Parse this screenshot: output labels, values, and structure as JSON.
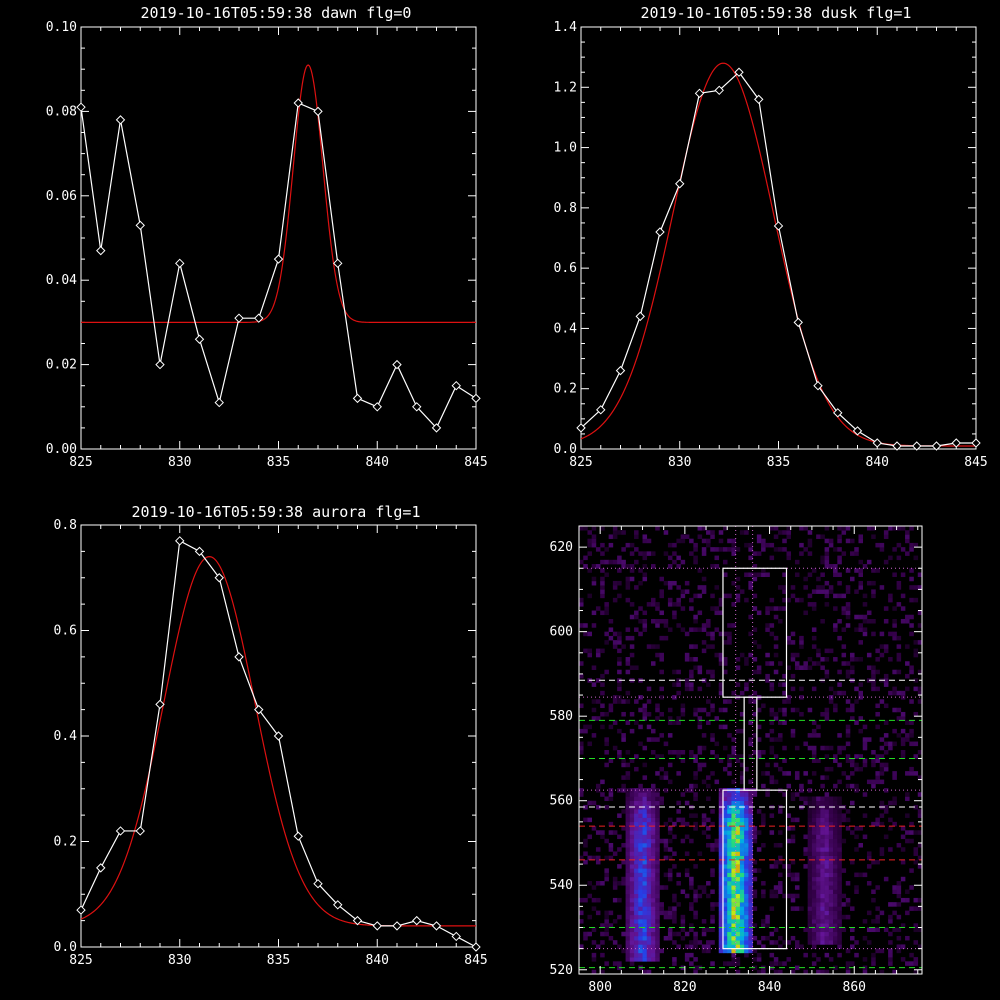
{
  "colors": {
    "background": "#000000",
    "axes": "#ffffff",
    "data": "#ffffff",
    "fit": "#dd1111",
    "guide_white": "#ffffff",
    "guide_green": "#22dd22",
    "guide_red": "#ee2222",
    "guide_dotted": "#cc66cc"
  },
  "chart_data": [
    {
      "id": "dawn",
      "type": "line",
      "title": "2019-10-16T05:59:38 dawn flg=0",
      "xlabel": "",
      "ylabel": "",
      "xlim": [
        825,
        845
      ],
      "ylim": [
        0,
        0.1
      ],
      "xticks": [
        825,
        830,
        835,
        840,
        845
      ],
      "yticks": [
        "0.00",
        "0.02",
        "0.04",
        "0.06",
        "0.08",
        "0.10"
      ],
      "series": [
        {
          "role": "data",
          "marker": "diamond",
          "x": [
            825,
            826,
            827,
            828,
            829,
            830,
            831,
            832,
            833,
            834,
            835,
            836,
            837,
            838,
            839,
            840,
            841,
            842,
            843,
            844,
            845
          ],
          "y": [
            0.081,
            0.047,
            0.078,
            0.053,
            0.02,
            0.044,
            0.026,
            0.011,
            0.031,
            0.031,
            0.045,
            0.082,
            0.08,
            0.044,
            0.012,
            0.01,
            0.02,
            0.01,
            0.005,
            0.015,
            0.012
          ]
        },
        {
          "role": "fit",
          "model": "gaussian",
          "baseline": 0.03,
          "amplitude": 0.061,
          "center": 836.5,
          "sigma": 0.75
        }
      ]
    },
    {
      "id": "dusk",
      "type": "line",
      "title": "2019-10-16T05:59:38 dusk flg=1",
      "xlabel": "",
      "ylabel": "",
      "xlim": [
        825,
        845
      ],
      "ylim": [
        0,
        1.4
      ],
      "xticks": [
        825,
        830,
        835,
        840,
        845
      ],
      "yticks": [
        "0.0",
        "0.2",
        "0.4",
        "0.6",
        "0.8",
        "1.0",
        "1.2",
        "1.4"
      ],
      "series": [
        {
          "role": "data",
          "marker": "diamond",
          "x": [
            825,
            826,
            827,
            828,
            829,
            830,
            831,
            832,
            833,
            834,
            835,
            836,
            837,
            838,
            839,
            840,
            841,
            842,
            843,
            844,
            845
          ],
          "y": [
            0.07,
            0.13,
            0.26,
            0.44,
            0.72,
            0.88,
            1.18,
            1.19,
            1.25,
            1.16,
            0.74,
            0.42,
            0.21,
            0.12,
            0.06,
            0.02,
            0.01,
            0.01,
            0.01,
            0.02,
            0.02
          ]
        },
        {
          "role": "fit",
          "model": "gaussian",
          "baseline": 0.01,
          "amplitude": 1.27,
          "center": 832.2,
          "sigma": 2.55
        }
      ]
    },
    {
      "id": "aurora",
      "type": "line",
      "title": "2019-10-16T05:59:38 aurora flg=1",
      "xlabel": "",
      "ylabel": "",
      "xlim": [
        825,
        845
      ],
      "ylim": [
        0,
        0.8
      ],
      "xticks": [
        825,
        830,
        835,
        840,
        845
      ],
      "yticks": [
        "0.0",
        "0.2",
        "0.4",
        "0.6",
        "0.8"
      ],
      "series": [
        {
          "role": "data",
          "marker": "diamond",
          "x": [
            825,
            826,
            827,
            828,
            829,
            830,
            831,
            832,
            833,
            834,
            835,
            836,
            837,
            838,
            839,
            840,
            841,
            842,
            843,
            844,
            845
          ],
          "y": [
            0.07,
            0.15,
            0.22,
            0.22,
            0.46,
            0.77,
            0.75,
            0.7,
            0.55,
            0.45,
            0.4,
            0.21,
            0.12,
            0.08,
            0.05,
            0.04,
            0.04,
            0.05,
            0.04,
            0.02,
            0.0
          ]
        },
        {
          "role": "fit",
          "model": "gaussian",
          "baseline": 0.04,
          "amplitude": 0.7,
          "center": 831.5,
          "sigma": 2.3
        }
      ]
    },
    {
      "id": "spectrogram",
      "type": "heatmap",
      "title": "",
      "xlabel": "",
      "ylabel": "",
      "xlim": [
        795,
        876
      ],
      "ylim": [
        519,
        625
      ],
      "xticks": [
        800,
        820,
        840,
        860
      ],
      "yticks": [
        520,
        540,
        560,
        580,
        600,
        620
      ],
      "emission_columns": [
        {
          "x_center": 810,
          "half_width": 3.5,
          "y_range": [
            522,
            562
          ],
          "peak": 0.55
        },
        {
          "x_center": 832,
          "half_width": 3.5,
          "y_range": [
            524,
            562
          ],
          "peak": 1.0
        },
        {
          "x_center": 853,
          "half_width": 3.5,
          "y_range": [
            526,
            560
          ],
          "peak": 0.35
        }
      ],
      "guide_lines": [
        {
          "orientation": "h",
          "y": 588.5,
          "style": "white-dashed"
        },
        {
          "orientation": "h",
          "y": 558.5,
          "style": "white-dashed"
        },
        {
          "orientation": "h",
          "y": 579,
          "style": "green-dashed"
        },
        {
          "orientation": "h",
          "y": 570,
          "style": "green-dashed"
        },
        {
          "orientation": "h",
          "y": 530,
          "style": "green-dashed"
        },
        {
          "orientation": "h",
          "y": 520.5,
          "style": "green-dashed"
        },
        {
          "orientation": "h",
          "y": 554,
          "style": "red-dashed"
        },
        {
          "orientation": "h",
          "y": 546,
          "style": "red-dashed"
        },
        {
          "orientation": "h",
          "y": 615,
          "style": "dotted"
        },
        {
          "orientation": "h",
          "y": 584.5,
          "style": "dotted"
        },
        {
          "orientation": "h",
          "y": 562.5,
          "style": "dotted"
        },
        {
          "orientation": "h",
          "y": 525,
          "style": "dotted"
        },
        {
          "orientation": "v",
          "x": 832,
          "style": "dotted"
        },
        {
          "orientation": "v",
          "x": 836,
          "style": "dotted"
        }
      ],
      "boxes": [
        {
          "x": [
            829,
            844
          ],
          "y": [
            584.5,
            615
          ]
        },
        {
          "x": [
            834,
            837
          ],
          "y": [
            562.5,
            584.5
          ]
        },
        {
          "x": [
            829,
            844
          ],
          "y": [
            525,
            562.5
          ]
        }
      ]
    }
  ]
}
